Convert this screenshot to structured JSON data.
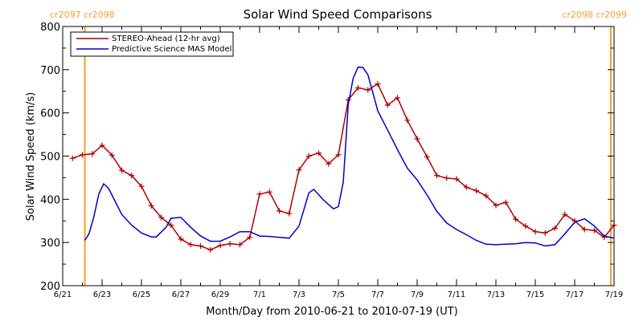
{
  "chart_data": {
    "type": "line",
    "title": "Solar Wind Speed Comparisons",
    "xlabel": "Month/Day from 2010-06-21 to 2010-07-19 (UT)",
    "ylabel": "Solar Wind Speed (km/s)",
    "xlim": [
      "2010-06-21",
      "2010-07-19"
    ],
    "ylim": [
      200,
      800
    ],
    "y_ticks": [
      200,
      300,
      400,
      500,
      600,
      700,
      800
    ],
    "x_ticks": [
      {
        "date": "2010-06-21",
        "label": "6/21"
      },
      {
        "date": "2010-06-23",
        "label": "6/23"
      },
      {
        "date": "2010-06-25",
        "label": "6/25"
      },
      {
        "date": "2010-06-27",
        "label": "6/27"
      },
      {
        "date": "2010-06-29",
        "label": "6/29"
      },
      {
        "date": "2010-07-01",
        "label": "7/1"
      },
      {
        "date": "2010-07-03",
        "label": "7/3"
      },
      {
        "date": "2010-07-05",
        "label": "7/5"
      },
      {
        "date": "2010-07-07",
        "label": "7/7"
      },
      {
        "date": "2010-07-09",
        "label": "7/9"
      },
      {
        "date": "2010-07-11",
        "label": "7/11"
      },
      {
        "date": "2010-07-13",
        "label": "7/13"
      },
      {
        "date": "2010-07-15",
        "label": "7/15"
      },
      {
        "date": "2010-07-17",
        "label": "7/17"
      },
      {
        "date": "2010-07-19",
        "label": "7/19"
      }
    ],
    "legend": "top-left",
    "grid": false,
    "carrington_markers": [
      {
        "date": "2010-06-22 03:00",
        "label": "cr2097 cr2098",
        "color": "#f0a030"
      },
      {
        "date": "2010-07-18 20:00",
        "label": "cr2098 cr2099",
        "color": "#f0a030"
      }
    ],
    "series": [
      {
        "name": "STEREO-Ahead (12-hr avg)",
        "color": "#b00000",
        "marker": "plus",
        "points": [
          [
            "2010-06-21 12:00",
            495
          ],
          [
            "2010-06-22 00:00",
            503
          ],
          [
            "2010-06-22 12:00",
            505
          ],
          [
            "2010-06-23 00:00",
            525
          ],
          [
            "2010-06-23 12:00",
            502
          ],
          [
            "2010-06-24 00:00",
            467
          ],
          [
            "2010-06-24 12:00",
            455
          ],
          [
            "2010-06-25 00:00",
            430
          ],
          [
            "2010-06-25 12:00",
            385
          ],
          [
            "2010-06-26 00:00",
            358
          ],
          [
            "2010-06-26 12:00",
            340
          ],
          [
            "2010-06-27 00:00",
            308
          ],
          [
            "2010-06-27 12:00",
            295
          ],
          [
            "2010-06-28 00:00",
            292
          ],
          [
            "2010-06-28 12:00",
            283
          ],
          [
            "2010-06-29 00:00",
            293
          ],
          [
            "2010-06-29 12:00",
            297
          ],
          [
            "2010-06-30 00:00",
            295
          ],
          [
            "2010-06-30 12:00",
            312
          ],
          [
            "2010-07-01 00:00",
            412
          ],
          [
            "2010-07-01 12:00",
            417
          ],
          [
            "2010-07-02 00:00",
            373
          ],
          [
            "2010-07-02 12:00",
            367
          ],
          [
            "2010-07-03 00:00",
            468
          ],
          [
            "2010-07-03 12:00",
            500
          ],
          [
            "2010-07-04 00:00",
            507
          ],
          [
            "2010-07-04 12:00",
            482
          ],
          [
            "2010-07-05 00:00",
            503
          ],
          [
            "2010-07-05 12:00",
            630
          ],
          [
            "2010-07-06 00:00",
            658
          ],
          [
            "2010-07-06 12:00",
            653
          ],
          [
            "2010-07-07 00:00",
            667
          ],
          [
            "2010-07-07 12:00",
            618
          ],
          [
            "2010-07-08 00:00",
            635
          ],
          [
            "2010-07-08 12:00",
            583
          ],
          [
            "2010-07-09 00:00",
            540
          ],
          [
            "2010-07-09 12:00",
            498
          ],
          [
            "2010-07-10 00:00",
            455
          ],
          [
            "2010-07-10 12:00",
            449
          ],
          [
            "2010-07-11 00:00",
            447
          ],
          [
            "2010-07-11 12:00",
            428
          ],
          [
            "2010-07-12 00:00",
            420
          ],
          [
            "2010-07-12 12:00",
            408
          ],
          [
            "2010-07-13 00:00",
            386
          ],
          [
            "2010-07-13 12:00",
            393
          ],
          [
            "2010-07-14 00:00",
            354
          ],
          [
            "2010-07-14 12:00",
            338
          ],
          [
            "2010-07-15 00:00",
            325
          ],
          [
            "2010-07-15 12:00",
            322
          ],
          [
            "2010-07-16 00:00",
            333
          ],
          [
            "2010-07-16 12:00",
            365
          ],
          [
            "2010-07-17 00:00",
            350
          ],
          [
            "2010-07-17 12:00",
            330
          ],
          [
            "2010-07-18 00:00",
            328
          ],
          [
            "2010-07-18 12:00",
            312
          ],
          [
            "2010-07-19 00:00",
            340
          ]
        ]
      },
      {
        "name": "Predictive Science MAS Model",
        "color": "#0000cc",
        "points": [
          [
            "2010-06-22 03:00",
            305
          ],
          [
            "2010-06-22 08:00",
            320
          ],
          [
            "2010-06-22 14:00",
            360
          ],
          [
            "2010-06-22 20:00",
            412
          ],
          [
            "2010-06-23 02:00",
            436
          ],
          [
            "2010-06-23 08:00",
            425
          ],
          [
            "2010-06-23 16:00",
            395
          ],
          [
            "2010-06-24 00:00",
            365
          ],
          [
            "2010-06-24 12:00",
            340
          ],
          [
            "2010-06-25 00:00",
            322
          ],
          [
            "2010-06-25 12:00",
            313
          ],
          [
            "2010-06-25 18:00",
            313
          ],
          [
            "2010-06-26 06:00",
            335
          ],
          [
            "2010-06-26 12:00",
            356
          ],
          [
            "2010-06-27 00:00",
            358
          ],
          [
            "2010-06-27 12:00",
            335
          ],
          [
            "2010-06-28 00:00",
            315
          ],
          [
            "2010-06-28 12:00",
            303
          ],
          [
            "2010-06-29 00:00",
            303
          ],
          [
            "2010-06-29 12:00",
            313
          ],
          [
            "2010-06-30 00:00",
            325
          ],
          [
            "2010-06-30 12:00",
            325
          ],
          [
            "2010-07-01 00:00",
            315
          ],
          [
            "2010-07-01 12:00",
            314
          ],
          [
            "2010-07-02 00:00",
            312
          ],
          [
            "2010-07-02 12:00",
            310
          ],
          [
            "2010-07-03 00:00",
            338
          ],
          [
            "2010-07-03 12:00",
            415
          ],
          [
            "2010-07-03 18:00",
            423
          ],
          [
            "2010-07-04 06:00",
            398
          ],
          [
            "2010-07-04 18:00",
            378
          ],
          [
            "2010-07-05 00:00",
            383
          ],
          [
            "2010-07-05 06:00",
            440
          ],
          [
            "2010-07-05 12:00",
            620
          ],
          [
            "2010-07-05 18:00",
            680
          ],
          [
            "2010-07-06 00:00",
            706
          ],
          [
            "2010-07-06 06:00",
            705
          ],
          [
            "2010-07-06 12:00",
            688
          ],
          [
            "2010-07-07 00:00",
            605
          ],
          [
            "2010-07-07 12:00",
            560
          ],
          [
            "2010-07-08 00:00",
            515
          ],
          [
            "2010-07-08 12:00",
            472
          ],
          [
            "2010-07-09 00:00",
            445
          ],
          [
            "2010-07-09 12:00",
            410
          ],
          [
            "2010-07-10 00:00",
            372
          ],
          [
            "2010-07-10 12:00",
            345
          ],
          [
            "2010-07-11 00:00",
            330
          ],
          [
            "2010-07-11 12:00",
            318
          ],
          [
            "2010-07-12 00:00",
            305
          ],
          [
            "2010-07-12 12:00",
            296
          ],
          [
            "2010-07-13 00:00",
            295
          ],
          [
            "2010-07-13 12:00",
            296
          ],
          [
            "2010-07-14 00:00",
            297
          ],
          [
            "2010-07-14 12:00",
            300
          ],
          [
            "2010-07-15 00:00",
            299
          ],
          [
            "2010-07-15 12:00",
            292
          ],
          [
            "2010-07-16 00:00",
            295
          ],
          [
            "2010-07-16 12:00",
            320
          ],
          [
            "2010-07-17 00:00",
            347
          ],
          [
            "2010-07-17 12:00",
            355
          ],
          [
            "2010-07-18 00:00",
            338
          ],
          [
            "2010-07-18 12:00",
            315
          ],
          [
            "2010-07-19 00:00",
            310
          ]
        ]
      }
    ]
  }
}
